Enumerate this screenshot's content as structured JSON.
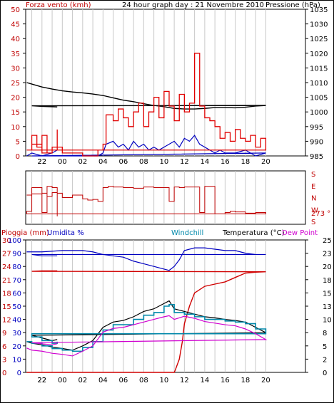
{
  "chart_data": [
    {
      "type": "line",
      "panel": "wind-pressure",
      "title": "24 hour graph day : 21 Novembre 2010",
      "left_axis_label": "Forza vento (kmh)",
      "right_axis_label": "Pressione (hPa)",
      "left_ticks": [
        0,
        5,
        10,
        15,
        20,
        25,
        30,
        35,
        40,
        45,
        50
      ],
      "right_ticks": [
        985,
        990,
        995,
        1000,
        1005,
        1010,
        1015,
        1020,
        1025,
        1030,
        1035
      ],
      "ylim_left": [
        0,
        50
      ],
      "ylim_right": [
        985,
        1035
      ],
      "x_hours": [
        20,
        21,
        22,
        23,
        0,
        1,
        2,
        3,
        4,
        5,
        6,
        7,
        8,
        9,
        10,
        11,
        12,
        13,
        14,
        15,
        16,
        17,
        18,
        19,
        20,
        21,
        22,
        23
      ],
      "x_tick_labels": [
        "22",
        "00",
        "02",
        "04",
        "06",
        "08",
        "10",
        "12",
        "14",
        "16",
        "18",
        "20",
        "22"
      ],
      "colors": {
        "gust": "#e00000",
        "wind": "#0000c0",
        "pressure": "#000000",
        "grid": "#c0c0c0"
      },
      "series": [
        {
          "key": "pressure",
          "x": [
            20.5,
            21,
            22,
            23,
            0,
            1,
            2,
            3,
            4,
            5,
            6,
            7,
            8,
            9,
            10,
            11,
            12,
            13,
            14,
            15,
            16,
            17,
            18,
            19,
            20,
            21,
            22,
            23.5
          ],
          "values": [
            1010,
            1009.5,
            1008.5,
            1007.8,
            1007.2,
            1006.8,
            1006.5,
            1006.1,
            1005.6,
            1004.8,
            1004,
            1003.5,
            1002.8,
            1002.2,
            1001.8,
            1001.2,
            1001,
            1001,
            1001.2,
            1001.5,
            1001.5,
            1001.4,
            1001.6,
            1002,
            1002.2,
            1002.1,
            1001.9,
            1001.7
          ]
        },
        {
          "key": "wind",
          "x": [
            20.5,
            21,
            22,
            23,
            0,
            1,
            2,
            3,
            3.5,
            4,
            4.3,
            5,
            5.5,
            6,
            6.5,
            7,
            7.5,
            8,
            8.5,
            9,
            9.5,
            10,
            10.5,
            11,
            11.5,
            12,
            12.5,
            13,
            13.5,
            14,
            14.5,
            15,
            15.5,
            16,
            17,
            18,
            19,
            20,
            21,
            22,
            23,
            23.5
          ],
          "values": [
            0,
            1,
            0,
            0,
            0,
            0,
            0,
            0,
            0,
            1,
            4,
            5,
            3,
            4,
            2,
            5,
            3,
            4,
            2,
            3,
            2,
            3,
            4,
            5,
            3,
            6,
            5,
            7,
            4,
            3,
            2,
            1,
            2,
            1,
            1,
            2,
            0,
            1,
            0,
            0,
            1,
            2
          ]
        },
        {
          "key": "gust",
          "x": [
            20.5,
            21,
            21.5,
            22,
            22.5,
            23,
            23.5,
            0,
            1,
            2,
            3,
            3.5,
            4,
            4.3,
            5,
            5.5,
            6,
            6.5,
            7,
            7.5,
            8,
            8.5,
            9,
            9.5,
            10,
            10.5,
            11,
            11.5,
            12,
            12.5,
            13,
            13.5,
            14,
            14.5,
            15,
            15.5,
            16,
            16.5,
            17,
            17.5,
            18,
            18.5,
            19,
            19.5,
            20,
            21,
            22,
            23,
            23.5
          ],
          "values": [
            2,
            7,
            3,
            7,
            1,
            2,
            3,
            1,
            1,
            0,
            0,
            2,
            4,
            14,
            12,
            16,
            13,
            10,
            15,
            18,
            10,
            15,
            20,
            13,
            22,
            17,
            12,
            21,
            15,
            18,
            35,
            17,
            13,
            12,
            10,
            6,
            8,
            5,
            9,
            6,
            5,
            7,
            3,
            6,
            2,
            4,
            1,
            3,
            9
          ]
        }
      ]
    },
    {
      "type": "line",
      "panel": "wind-direction",
      "right_axis_labels": [
        "S",
        "E",
        "N",
        "W",
        "S"
      ],
      "current_direction_label": "273 °",
      "colors": {
        "direction": "#c00000"
      },
      "series": [
        {
          "key": "direction",
          "x": [
            20.5,
            21,
            22,
            22.5,
            23,
            23.5,
            0,
            1,
            2,
            2.5,
            3,
            3.5,
            4,
            4.5,
            5,
            6,
            7,
            8,
            9,
            10,
            10.5,
            11,
            11.5,
            12,
            13,
            13.5,
            14,
            15,
            16,
            16.5,
            17,
            18,
            19,
            20,
            20.5,
            21,
            22,
            22.5,
            23,
            23.5
          ],
          "values": [
            200,
            210,
            215,
            190,
            220,
            215,
            180,
            200,
            170,
            160,
            165,
            150,
            260,
            270,
            265,
            260,
            255,
            265,
            260,
            260,
            150,
            265,
            260,
            265,
            265,
            60,
            270,
            50,
            60,
            70,
            65,
            55,
            60,
            50,
            70,
            260,
            60,
            270,
            260,
            30
          ]
        }
      ]
    },
    {
      "type": "line",
      "panel": "rain-humidity-temperature",
      "labels": {
        "rain": "Pioggia (mm)",
        "humidity": "Umidita %",
        "windchill": "Windchill",
        "temperature": "Temperatura (°C)",
        "dewpoint": "Dew Point"
      },
      "left_ticks_rain": [
        0,
        3,
        6,
        9,
        12,
        15,
        18,
        21,
        24,
        27,
        30
      ],
      "left_ticks_humidity": [
        0,
        10,
        20,
        30,
        40,
        50,
        60,
        70,
        80,
        90,
        100
      ],
      "right_ticks_temperature": [
        0,
        2,
        5,
        8,
        10,
        13,
        15,
        18,
        20,
        23,
        25
      ],
      "ylim_rain": [
        0,
        30
      ],
      "ylim_temperature": [
        0,
        25
      ],
      "colors": {
        "rain": "#d00000",
        "humidity": "#0000c0",
        "windchill": "#0088aa",
        "temperature": "#000000",
        "dewpoint": "#d000d0"
      },
      "series": [
        {
          "key": "humidity",
          "x": [
            20.5,
            22,
            0,
            1,
            2,
            3,
            4,
            5,
            6,
            7,
            8,
            9,
            10,
            10.5,
            11,
            11.5,
            12,
            13,
            14,
            15,
            16,
            17,
            18,
            19,
            20,
            21,
            22,
            23.5
          ],
          "values": [
            91,
            91,
            92,
            92,
            92,
            91,
            89,
            88,
            87,
            84,
            82,
            80,
            78,
            77,
            80,
            85,
            92,
            94,
            94,
            93,
            92,
            92,
            90,
            89,
            89,
            89,
            88,
            88
          ]
        },
        {
          "key": "rain",
          "x": [
            20.5,
            11,
            11.1,
            11.5,
            11.8,
            12,
            12.5,
            13,
            14,
            15,
            16,
            17,
            18,
            19,
            20,
            21,
            22,
            23.5
          ],
          "values": [
            0,
            0,
            0.5,
            3,
            7,
            11,
            15,
            18,
            19.5,
            20,
            20.5,
            21.5,
            22.5,
            22.7,
            22.8,
            22.9,
            23,
            23
          ]
        },
        {
          "key": "temperature",
          "x": [
            20.5,
            21,
            22,
            23,
            0,
            1,
            2,
            3,
            4,
            5,
            6,
            7,
            8,
            9,
            10,
            10.5,
            11,
            12,
            13,
            14,
            15,
            16,
            17,
            18,
            19,
            20,
            21,
            22,
            23,
            23.5
          ],
          "values": [
            5.8,
            5.5,
            5.2,
            4.8,
            4.5,
            4.2,
            5,
            6,
            8.5,
            9.5,
            9.8,
            10.5,
            11.5,
            12,
            13,
            13.5,
            12,
            11.5,
            11,
            10.5,
            10.3,
            10,
            9.8,
            9.5,
            8.5,
            7.5,
            7,
            6.5,
            6,
            6.2
          ]
        },
        {
          "key": "windchill",
          "x": [
            20.5,
            21,
            22,
            23,
            0,
            1,
            2,
            3,
            4,
            5,
            6,
            7,
            8,
            9,
            10,
            10.5,
            11,
            12,
            13,
            14,
            15,
            16,
            17,
            18,
            19,
            20,
            21,
            22,
            23,
            23.5
          ],
          "values": [
            5.8,
            5.5,
            5,
            4.5,
            4.2,
            4,
            4.7,
            5.8,
            8,
            9,
            9,
            10,
            10.8,
            11.3,
            12.5,
            12.8,
            11.3,
            11,
            10.5,
            10,
            10,
            9.7,
            9.5,
            9.2,
            8.2,
            7.3,
            6.7,
            6,
            5.5,
            5.8
          ]
        },
        {
          "key": "dewpoint",
          "x": [
            20.5,
            21,
            22,
            23,
            0,
            1,
            2,
            3,
            4,
            5,
            6,
            7,
            8,
            9,
            10,
            10.5,
            11,
            12,
            13,
            14,
            15,
            16,
            17,
            18,
            19,
            20,
            21,
            22,
            23,
            23.5
          ],
          "values": [
            4.6,
            4.2,
            4,
            3.6,
            3.4,
            3.1,
            4,
            5,
            7.6,
            8.3,
            8.5,
            9,
            9.5,
            10,
            10.5,
            10.7,
            10,
            10.6,
            10.2,
            9.6,
            9.3,
            9,
            8.8,
            8.2,
            7.3,
            6.2,
            5.6,
            5.4,
            5.2,
            5.4
          ]
        }
      ]
    }
  ]
}
